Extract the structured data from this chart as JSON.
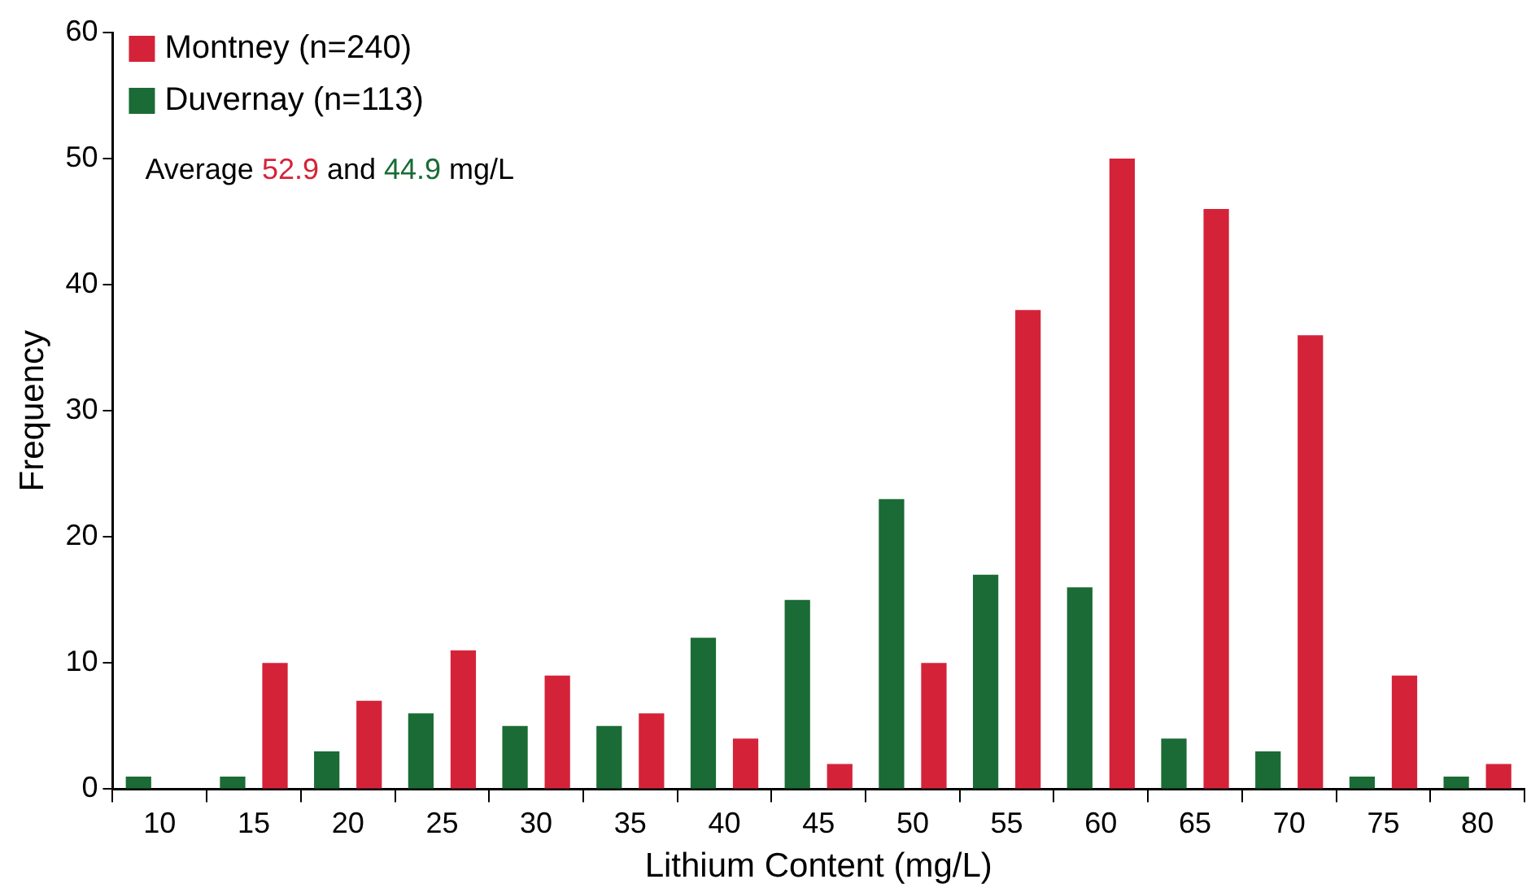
{
  "chart_data": {
    "type": "bar",
    "xlabel": "Lithium Content (mg/L)",
    "ylabel": "Frequency",
    "categories": [
      "10",
      "15",
      "20",
      "25",
      "30",
      "35",
      "40",
      "45",
      "50",
      "55",
      "60",
      "65",
      "70",
      "75",
      "80"
    ],
    "series": [
      {
        "name": "Duvernay (n=113)",
        "color": "#1a6b35",
        "values": [
          1,
          1,
          3,
          6,
          5,
          5,
          12,
          15,
          23,
          17,
          16,
          4,
          3,
          1,
          1
        ]
      },
      {
        "name": "Montney (n=240)",
        "color": "#d42339",
        "values": [
          0,
          10,
          7,
          11,
          9,
          6,
          4,
          2,
          10,
          38,
          50,
          46,
          36,
          9,
          2
        ]
      }
    ],
    "ylim": [
      0,
      60
    ],
    "yticks": [
      0,
      10,
      20,
      30,
      40,
      50,
      60
    ],
    "grid": false,
    "legend": "top left",
    "annotations": [
      "Average 52.9 and 44.9 mg/L"
    ]
  }
}
